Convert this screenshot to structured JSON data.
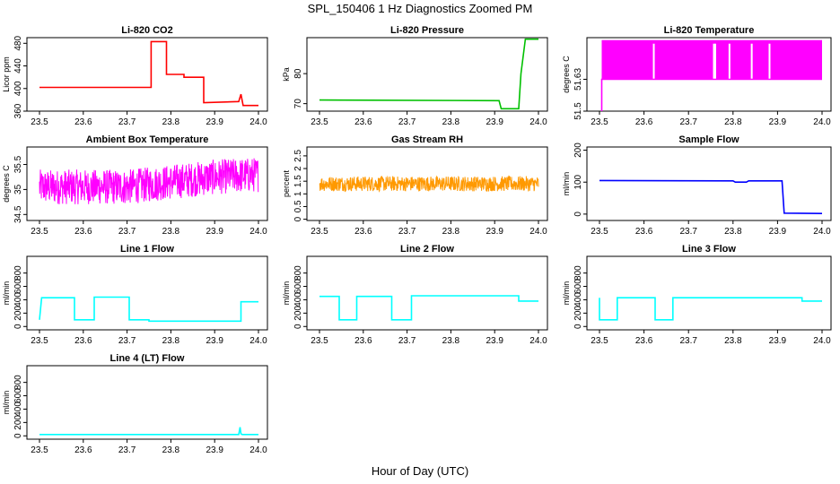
{
  "figure": {
    "title": "SPL_150406  1 Hz Diagnostics Zoomed PM",
    "xlabel": "Hour of Day (UTC)"
  },
  "chart_data": [
    {
      "type": "line",
      "title": "Li-820 CO2",
      "ylabel": "Licor ppm",
      "color": "#ff0000",
      "xlim": [
        23.5,
        24.0
      ],
      "ylim": [
        360,
        490
      ],
      "xticks": [
        "23.5",
        "23.6",
        "23.7",
        "23.8",
        "23.9",
        "24.0"
      ],
      "yticks": [
        360,
        400,
        440,
        480
      ],
      "x": [
        23.5,
        23.755,
        23.755,
        23.79,
        23.79,
        23.83,
        23.83,
        23.875,
        23.875,
        23.955,
        23.96,
        23.965,
        24.0
      ],
      "y": [
        402,
        402,
        483,
        483,
        425,
        425,
        420,
        420,
        375,
        377,
        390,
        370,
        370
      ]
    },
    {
      "type": "line",
      "title": "Li-820 Pressure",
      "ylabel": "kPa",
      "color": "#00c000",
      "xlim": [
        23.5,
        24.0
      ],
      "ylim": [
        67.5,
        92
      ],
      "xticks": [
        "23.5",
        "23.6",
        "23.7",
        "23.8",
        "23.9",
        "24.0"
      ],
      "yticks": [
        70,
        80
      ],
      "x": [
        23.5,
        23.91,
        23.915,
        23.955,
        23.96,
        23.97,
        24.0
      ],
      "y": [
        71.2,
        71.0,
        68.3,
        68.3,
        80,
        91.5,
        91.5
      ]
    },
    {
      "type": "line",
      "title": "Li-820 Temperature",
      "ylabel": "degrees C",
      "color": "#ff00ff",
      "xlim": [
        23.5,
        24.0
      ],
      "ylim": [
        51.5,
        51.8
      ],
      "xticks": [
        "23.5",
        "23.6",
        "23.7",
        "23.8",
        "23.9",
        "24.0"
      ],
      "yticks": [
        51.5,
        51.63
      ],
      "ytick_labels": [
        "51.5",
        "51.63"
      ],
      "x": [
        23.505,
        23.505,
        24.0
      ],
      "y": [
        51.5,
        51.63,
        51.63
      ],
      "band": [
        51.63,
        51.79
      ]
    },
    {
      "type": "line",
      "title": "Ambient Box Temperature",
      "ylabel": "degrees C",
      "color": "#ff00ff",
      "xlim": [
        23.5,
        24.0
      ],
      "ylim": [
        34.38,
        35.85
      ],
      "xticks": [
        "23.5",
        "23.6",
        "23.7",
        "23.8",
        "23.9",
        "24.0"
      ],
      "yticks": [
        34.5,
        35.0,
        35.5
      ],
      "x": [
        23.5,
        23.6,
        23.7,
        23.8,
        23.9,
        24.0
      ],
      "y": [
        35.05,
        35.05,
        35.05,
        35.15,
        35.25,
        35.3
      ],
      "noise_amplitude": 0.35
    },
    {
      "type": "line",
      "title": "Gas Stream RH",
      "ylabel": "percent",
      "color": "#ff9900",
      "xlim": [
        23.5,
        24.0
      ],
      "ylim": [
        -0.05,
        2.85
      ],
      "xticks": [
        "23.5",
        "23.6",
        "23.7",
        "23.8",
        "23.9",
        "24.0"
      ],
      "yticks": [
        0.0,
        0.5,
        1.0,
        1.5,
        2.0,
        2.5
      ],
      "x": [
        23.5,
        24.0
      ],
      "y": [
        1.4,
        1.4
      ],
      "noise_amplitude": 0.3
    },
    {
      "type": "line",
      "title": "Sample Flow",
      "ylabel": "ml/min",
      "color": "#0000ff",
      "xlim": [
        23.5,
        24.0
      ],
      "ylim": [
        -20,
        210
      ],
      "xticks": [
        "23.5",
        "23.6",
        "23.7",
        "23.8",
        "23.9",
        "24.0"
      ],
      "yticks": [
        0,
        100,
        200
      ],
      "x": [
        23.5,
        23.8,
        23.805,
        23.83,
        23.835,
        23.91,
        23.915,
        24.0
      ],
      "y": [
        105,
        104,
        100,
        100,
        104,
        104,
        3,
        2
      ]
    },
    {
      "type": "line",
      "title": "Line 1 Flow",
      "ylabel": "ml/min",
      "color": "#00ffff",
      "xlim": [
        23.5,
        24.0
      ],
      "ylim": [
        -50,
        1050
      ],
      "xticks": [
        "23.5",
        "23.6",
        "23.7",
        "23.8",
        "23.9",
        "24.0"
      ],
      "yticks": [
        0,
        200,
        400,
        600,
        800
      ],
      "x": [
        23.5,
        23.505,
        23.58,
        23.58,
        23.625,
        23.625,
        23.705,
        23.705,
        23.75,
        23.75,
        23.96,
        23.96,
        24.0
      ],
      "y": [
        100,
        430,
        430,
        100,
        100,
        440,
        440,
        100,
        100,
        80,
        80,
        370,
        370
      ]
    },
    {
      "type": "line",
      "title": "Line 2 Flow",
      "ylabel": "ml/min",
      "color": "#00ffff",
      "xlim": [
        23.5,
        24.0
      ],
      "ylim": [
        -50,
        1050
      ],
      "xticks": [
        "23.5",
        "23.6",
        "23.7",
        "23.8",
        "23.9",
        "24.0"
      ],
      "yticks": [
        0,
        200,
        400,
        600,
        800
      ],
      "x": [
        23.5,
        23.545,
        23.545,
        23.585,
        23.585,
        23.665,
        23.665,
        23.71,
        23.71,
        23.955,
        23.955,
        24.0
      ],
      "y": [
        450,
        450,
        100,
        100,
        450,
        450,
        100,
        100,
        460,
        460,
        380,
        380
      ]
    },
    {
      "type": "line",
      "title": "Line 3 Flow",
      "ylabel": "ml/min",
      "color": "#00ffff",
      "xlim": [
        23.5,
        24.0
      ],
      "ylim": [
        -50,
        1050
      ],
      "xticks": [
        "23.5",
        "23.6",
        "23.7",
        "23.8",
        "23.9",
        "24.0"
      ],
      "yticks": [
        0,
        200,
        400,
        600,
        800
      ],
      "x": [
        23.5,
        23.5,
        23.54,
        23.54,
        23.625,
        23.625,
        23.665,
        23.665,
        23.955,
        23.955,
        24.0
      ],
      "y": [
        430,
        100,
        100,
        430,
        430,
        100,
        100,
        430,
        430,
        380,
        380
      ]
    },
    {
      "type": "line",
      "title": "Line 4 (LT) Flow",
      "ylabel": "ml/min",
      "color": "#00ffff",
      "xlim": [
        23.5,
        24.0
      ],
      "ylim": [
        -50,
        1050
      ],
      "xticks": [
        "23.5",
        "23.6",
        "23.7",
        "23.8",
        "23.9",
        "24.0"
      ],
      "yticks": [
        0,
        200,
        400,
        600,
        800
      ],
      "x": [
        23.5,
        23.955,
        23.958,
        23.96,
        23.963,
        24.0
      ],
      "y": [
        20,
        20,
        130,
        30,
        20,
        20
      ]
    }
  ]
}
